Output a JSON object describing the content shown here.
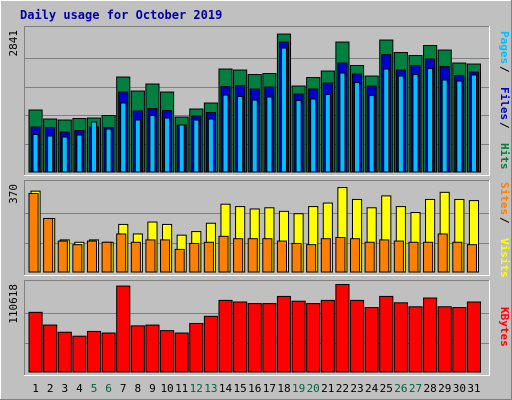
{
  "colors": {
    "background": "#C0C0C0",
    "panel": "#C0C0C0",
    "frame_dark": "#808080",
    "frame_light": "#FFFFFF",
    "grid": "#808080",
    "title": "#0000AA",
    "hits": "#008040",
    "files": "#0000CC",
    "pages": "#00C0FF",
    "visits": "#FFFF00",
    "sites": "#FF8000",
    "kbytes": "#FF0000",
    "bar_outline": "#000000",
    "weekday": "#000000",
    "weekend": "#006040"
  },
  "chart_data": {
    "type": "bar",
    "title": "Daily usage for October 2019",
    "categories": [
      "1",
      "2",
      "3",
      "4",
      "5",
      "6",
      "7",
      "8",
      "9",
      "10",
      "11",
      "12",
      "13",
      "14",
      "15",
      "16",
      "17",
      "18",
      "19",
      "20",
      "21",
      "22",
      "23",
      "24",
      "25",
      "26",
      "27",
      "28",
      "29",
      "30",
      "31"
    ],
    "weekend_days": [
      "5",
      "6",
      "12",
      "13",
      "19",
      "20",
      "26",
      "27"
    ],
    "panels": [
      {
        "id": "hits-files-pages",
        "ymax_label": "2841",
        "ylim": [
          0,
          2841
        ],
        "right_labels": [
          {
            "text": "Pages",
            "color_key": "pages"
          },
          {
            "text": "Files",
            "color_key": "files"
          },
          {
            "text": "Hits",
            "color_key": "hits"
          }
        ],
        "series": [
          {
            "name": "Hits",
            "color_key": "hits",
            "values": [
              1240,
              1060,
              1040,
              1070,
              1080,
              1130,
              1900,
              1620,
              1760,
              1600,
              1100,
              1260,
              1380,
              2060,
              2040,
              1950,
              1970,
              2760,
              1720,
              1890,
              2020,
              2600,
              2130,
              1920,
              2640,
              2390,
              2330,
              2530,
              2440,
              2180,
              2160
            ]
          },
          {
            "name": "Files",
            "color_key": "files",
            "values": [
              900,
              890,
              800,
              830,
              900,
              890,
              1600,
              1220,
              1270,
              1230,
              940,
              1120,
              1190,
              1710,
              1730,
              1660,
              1700,
              2600,
              1560,
              1660,
              1780,
              2180,
              1960,
              1720,
              2350,
              2040,
              2130,
              2260,
              2110,
              1930,
              2000
            ]
          },
          {
            "name": "Pages",
            "color_key": "pages",
            "values": [
              750,
              720,
              700,
              740,
              1000,
              860,
              1380,
              1040,
              1130,
              1080,
              940,
              1040,
              1060,
              1540,
              1510,
              1440,
              1500,
              2480,
              1430,
              1460,
              1550,
              1980,
              1790,
              1530,
              2060,
              1920,
              1950,
              2070,
              1840,
              1820,
              1940
            ]
          }
        ]
      },
      {
        "id": "visits-sites",
        "ymax_label": "370",
        "ylim": [
          0,
          370
        ],
        "right_labels": [
          {
            "text": "Sites",
            "color_key": "sites"
          },
          {
            "text": "Visits",
            "color_key": "visits"
          }
        ],
        "series": [
          {
            "name": "Visits",
            "color_key": "visits",
            "values": [
              340,
              225,
              135,
              125,
              135,
              125,
              200,
              160,
              210,
              200,
              155,
              170,
              205,
              285,
              275,
              265,
              270,
              255,
              245,
              275,
              290,
              355,
              305,
              270,
              320,
              275,
              250,
              305,
              335,
              305,
              300
            ]
          },
          {
            "name": "Sites",
            "color_key": "sites",
            "values": [
              330,
              225,
              130,
              115,
              130,
              125,
              160,
              125,
              135,
              135,
              95,
              120,
              125,
              150,
              140,
              140,
              140,
              130,
              120,
              115,
              140,
              145,
              140,
              125,
              135,
              130,
              125,
              125,
              160,
              125,
              115
            ]
          }
        ]
      },
      {
        "id": "kbytes",
        "ymax_label": "110618",
        "ylim": [
          0,
          110618
        ],
        "right_labels": [
          {
            "text": "KBytes",
            "color_key": "kbytes"
          }
        ],
        "series": [
          {
            "name": "KBytes",
            "color_key": "kbytes",
            "values": [
              75000,
              59000,
              50000,
              45000,
              51000,
              49000,
              108000,
              58000,
              59000,
              52000,
              49000,
              61000,
              70000,
              90000,
              88000,
              86000,
              86000,
              95000,
              89000,
              86000,
              90000,
              110000,
              90000,
              81000,
              95000,
              87000,
              82000,
              93000,
              82000,
              81000,
              88000
            ]
          }
        ]
      }
    ]
  }
}
